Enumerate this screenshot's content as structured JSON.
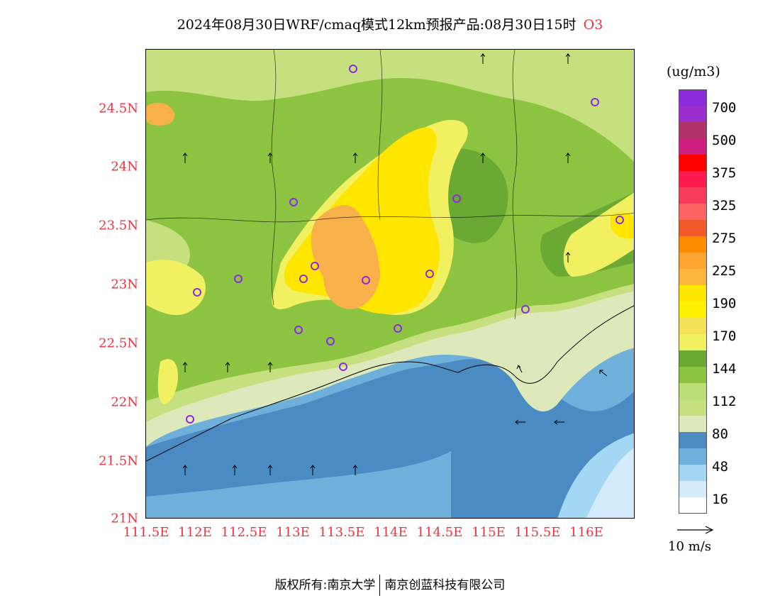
{
  "title": {
    "text": "2024年08月30日WRF/cmaq模式12km预报产品:08月30日15时",
    "pollutant": "O3"
  },
  "axes": {
    "lat_labels": [
      "21N",
      "21.5N",
      "22N",
      "22.5N",
      "23N",
      "23.5N",
      "24N",
      "24.5N"
    ],
    "lon_labels": [
      "111.5E",
      "112E",
      "112.5E",
      "113E",
      "113.5E",
      "114E",
      "114.5E",
      "115E",
      "115.5E",
      "116E"
    ]
  },
  "colorbar": {
    "unit": "(ug/m3)",
    "labels": [
      "700",
      "500",
      "375",
      "325",
      "275",
      "225",
      "190",
      "170",
      "144",
      "112",
      "80",
      "48",
      "16"
    ],
    "colors": [
      "#8c2bd9",
      "#9b2fce",
      "#b0346a",
      "#d01e80",
      "#ff0000",
      "#ff1a4d",
      "#f73c59",
      "#ff6464",
      "#f05a2a",
      "#ff8c00",
      "#fba530",
      "#fdb540",
      "#ffe600",
      "#fff200",
      "#f4e158",
      "#f0f060",
      "#6aa934",
      "#8cc341",
      "#bddd76",
      "#c7e07f",
      "#dde9bb",
      "#4a8bc3",
      "#6fb0db",
      "#a4d7f4",
      "#d3ebfa",
      "#ffffff"
    ]
  },
  "wind_reference": "10 m/s",
  "footer": {
    "left": "版权所有:南京大学",
    "right": "南京创蓝科技有限公司"
  },
  "map": {
    "colors": {
      "sea_deep": "#4a8bc3",
      "sea_mid": "#6fb0db",
      "sea_light": "#a4d7f4",
      "sea_pale": "#d3ebfa",
      "pale_green": "#dde9bb",
      "light_green": "#c7e07f",
      "mid_green": "#8cc341",
      "dark_green": "#6aa934",
      "yellow_green": "#f0f060",
      "yellow": "#ffe600",
      "orange": "#f8b04a"
    }
  }
}
